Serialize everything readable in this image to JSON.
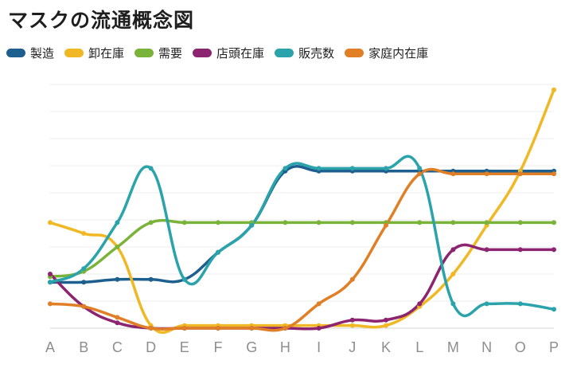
{
  "title": "マスクの流通概念図",
  "chart_data": {
    "type": "line",
    "title": "マスクの流通概念図",
    "categories": [
      "A",
      "B",
      "C",
      "D",
      "E",
      "F",
      "G",
      "H",
      "I",
      "J",
      "K",
      "L",
      "M",
      "N",
      "O",
      "P"
    ],
    "ylim": [
      0,
      9
    ],
    "grid": true,
    "legend_position": "top-left",
    "series": [
      {
        "name": "製造",
        "color": "#1d5f8e",
        "values": [
          1.7,
          1.7,
          1.8,
          1.8,
          1.8,
          2.8,
          3.8,
          5.8,
          5.8,
          5.8,
          5.8,
          5.8,
          5.8,
          5.8,
          5.8,
          5.8
        ]
      },
      {
        "name": "卸在庫",
        "color": "#f0b824",
        "values": [
          3.9,
          3.5,
          3.0,
          0.1,
          0.1,
          0.1,
          0.1,
          0.1,
          0.1,
          0.1,
          0.1,
          0.8,
          2.0,
          3.8,
          5.8,
          8.8
        ]
      },
      {
        "name": "需要",
        "color": "#7ab33a",
        "values": [
          1.9,
          2.1,
          3.0,
          3.9,
          3.9,
          3.9,
          3.9,
          3.9,
          3.9,
          3.9,
          3.9,
          3.9,
          3.9,
          3.9,
          3.9,
          3.9
        ]
      },
      {
        "name": "店頭在庫",
        "color": "#8c2470",
        "values": [
          2.0,
          0.8,
          0.2,
          0.0,
          0.0,
          0.0,
          0.0,
          0.0,
          0.0,
          0.3,
          0.3,
          0.9,
          2.9,
          2.9,
          2.9,
          2.9
        ]
      },
      {
        "name": "販売数",
        "color": "#2aa3ab",
        "values": [
          1.7,
          2.2,
          3.9,
          5.9,
          1.8,
          2.8,
          3.8,
          5.9,
          5.9,
          5.9,
          5.9,
          5.9,
          0.9,
          0.9,
          0.9,
          0.7
        ]
      },
      {
        "name": "家庭内在庫",
        "color": "#e07f26",
        "values": [
          0.9,
          0.8,
          0.4,
          0.0,
          0.0,
          0.0,
          0.0,
          0.0,
          0.9,
          1.8,
          3.8,
          5.7,
          5.7,
          5.7,
          5.7,
          5.7
        ]
      }
    ]
  }
}
